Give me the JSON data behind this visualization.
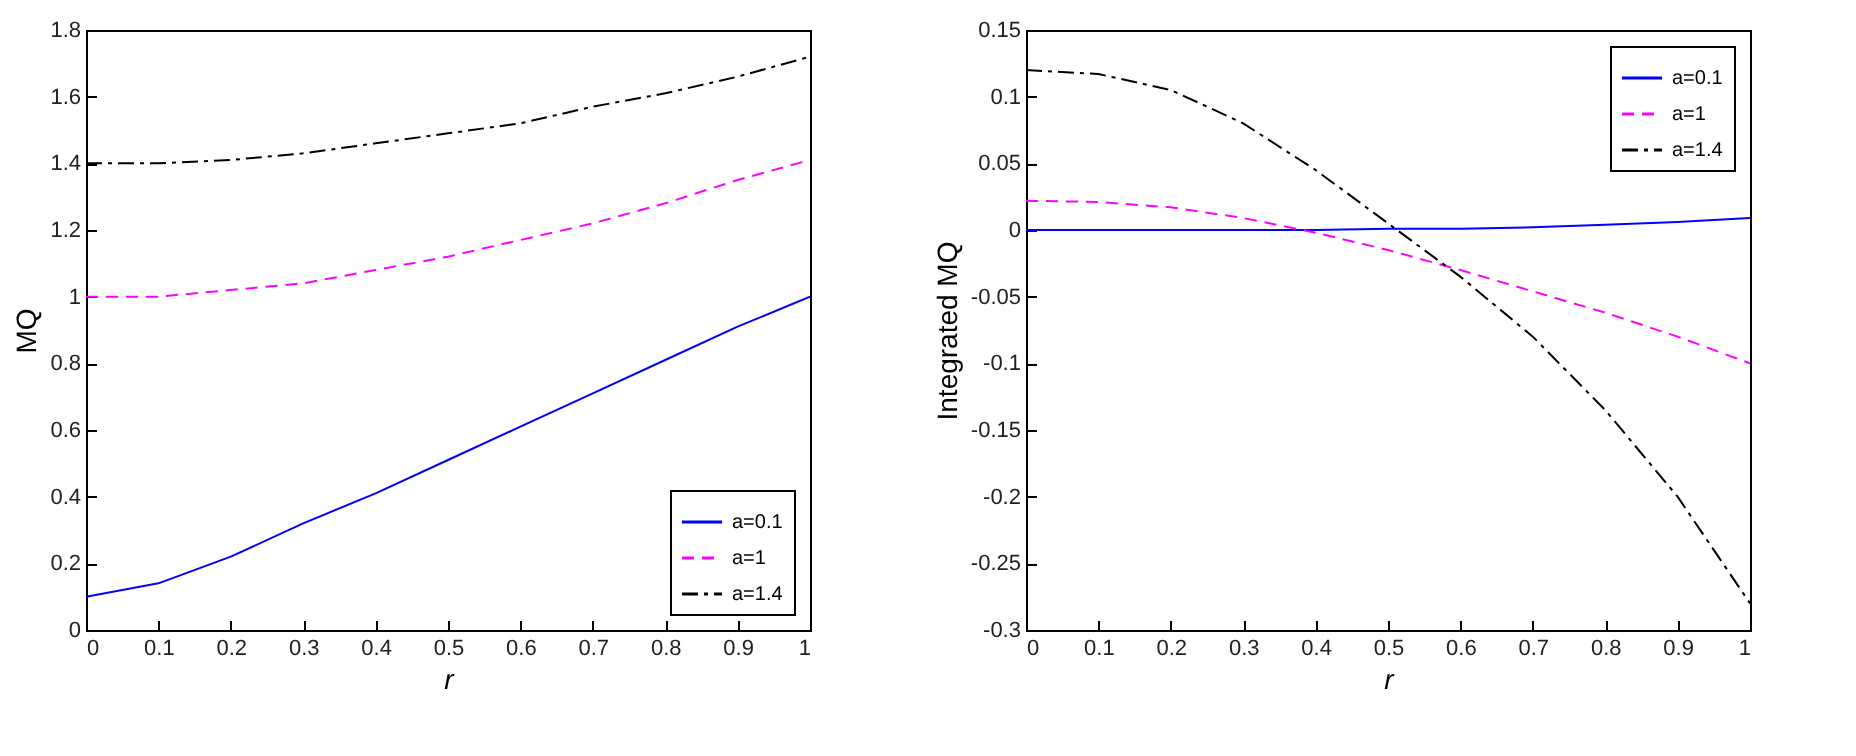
{
  "chart_data": [
    {
      "type": "line",
      "xlabel": "r",
      "ylabel": "MQ",
      "x": [
        0,
        0.1,
        0.2,
        0.3,
        0.4,
        0.5,
        0.6,
        0.7,
        0.8,
        0.9,
        1
      ],
      "xlim": [
        0,
        1
      ],
      "xticks": [
        0,
        0.1,
        0.2,
        0.3,
        0.4,
        0.5,
        0.6,
        0.7,
        0.8,
        0.9,
        1
      ],
      "ylim": [
        0,
        1.8
      ],
      "yticks": [
        0,
        0.2,
        0.4,
        0.6,
        0.8,
        1,
        1.2,
        1.4,
        1.6,
        1.8
      ],
      "grid": false,
      "legend": "bottom right",
      "series": [
        {
          "name": "a=0.1",
          "color": "#0000ff",
          "line_style": "solid",
          "values": [
            0.1,
            0.14,
            0.22,
            0.32,
            0.41,
            0.51,
            0.61,
            0.71,
            0.81,
            0.91,
            1.0
          ]
        },
        {
          "name": "a=1",
          "color": "#ff00ff",
          "line_style": "dashed",
          "values": [
            1.0,
            1.0,
            1.02,
            1.04,
            1.08,
            1.12,
            1.17,
            1.22,
            1.28,
            1.35,
            1.41
          ]
        },
        {
          "name": "a=1.4",
          "color": "#000000",
          "line_style": "dashdot",
          "values": [
            1.4,
            1.4,
            1.41,
            1.43,
            1.46,
            1.49,
            1.52,
            1.57,
            1.61,
            1.66,
            1.72
          ]
        }
      ]
    },
    {
      "type": "line",
      "xlabel": "r",
      "ylabel": "Integrated MQ",
      "x": [
        0,
        0.1,
        0.2,
        0.3,
        0.4,
        0.5,
        0.6,
        0.7,
        0.8,
        0.9,
        1
      ],
      "xlim": [
        0,
        1
      ],
      "xticks": [
        0,
        0.1,
        0.2,
        0.3,
        0.4,
        0.5,
        0.6,
        0.7,
        0.8,
        0.9,
        1
      ],
      "ylim": [
        -0.3,
        0.15
      ],
      "yticks": [
        -0.3,
        -0.25,
        -0.2,
        -0.15,
        -0.1,
        -0.05,
        0,
        0.05,
        0.1,
        0.15
      ],
      "grid": false,
      "legend": "top right",
      "series": [
        {
          "name": "a=0.1",
          "color": "#0000ff",
          "line_style": "solid",
          "values": [
            0,
            0,
            0,
            0,
            0,
            0.001,
            0.001,
            0.002,
            0.004,
            0.006,
            0.009
          ]
        },
        {
          "name": "a=1",
          "color": "#ff00ff",
          "line_style": "dashed",
          "values": [
            0.022,
            0.021,
            0.017,
            0.009,
            -0.002,
            -0.015,
            -0.03,
            -0.046,
            -0.062,
            -0.08,
            -0.1
          ]
        },
        {
          "name": "a=1.4",
          "color": "#000000",
          "line_style": "dashdot",
          "values": [
            0.12,
            0.117,
            0.105,
            0.08,
            0.045,
            0.005,
            -0.035,
            -0.08,
            -0.135,
            -0.2,
            -0.28
          ]
        }
      ]
    }
  ]
}
